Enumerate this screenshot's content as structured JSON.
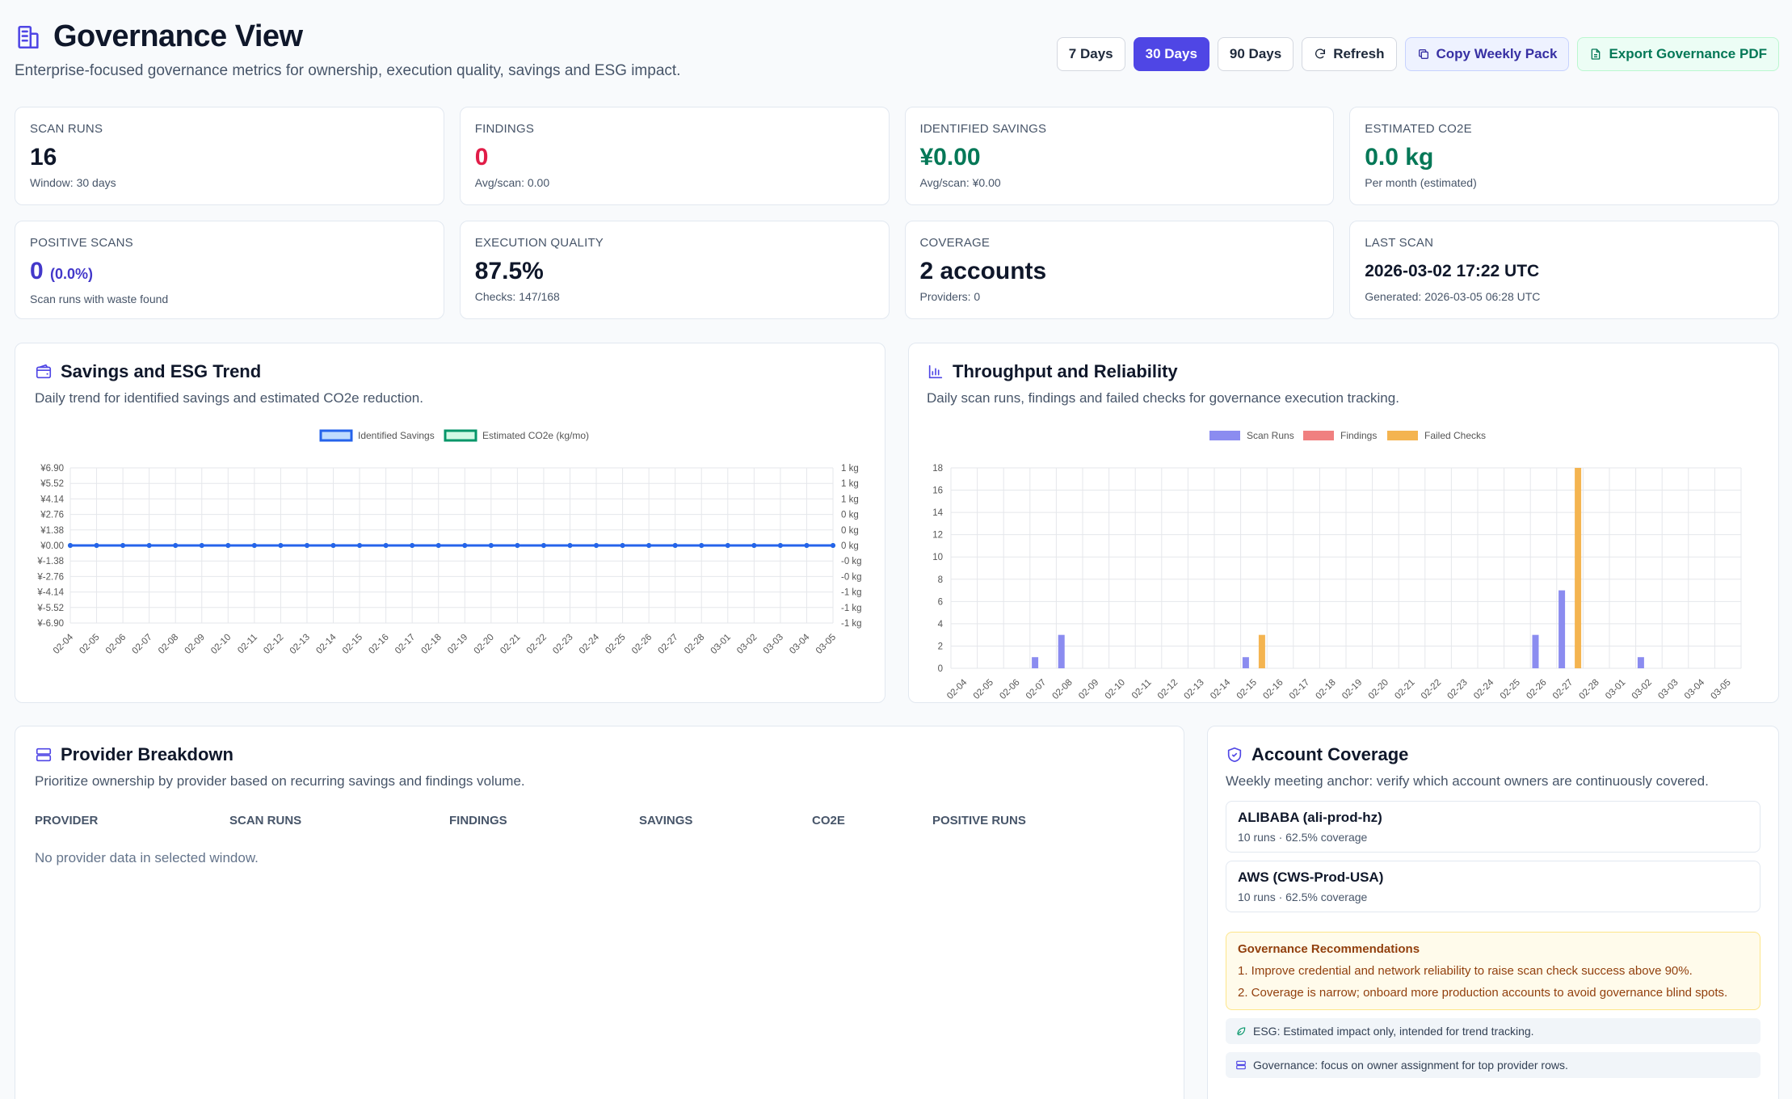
{
  "header": {
    "title": "Governance View",
    "subtitle": "Enterprise-focused governance metrics for ownership, execution quality, savings and ESG impact.",
    "buttons": {
      "days7": "7 Days",
      "days30": "30 Days",
      "days90": "90 Days",
      "refresh": "Refresh",
      "copy": "Copy Weekly Pack",
      "export": "Export Governance PDF"
    }
  },
  "cards": {
    "scan_runs": {
      "label": "SCAN RUNS",
      "value": "16",
      "sub": "Window: 30 days"
    },
    "findings": {
      "label": "FINDINGS",
      "value": "0",
      "sub": "Avg/scan: 0.00"
    },
    "savings": {
      "label": "IDENTIFIED SAVINGS",
      "value": "¥0.00",
      "sub": "Avg/scan: ¥0.00"
    },
    "co2e": {
      "label": "ESTIMATED CO2E",
      "value": "0.0 kg",
      "sub": "Per month (estimated)"
    },
    "positive": {
      "label": "POSITIVE SCANS",
      "value": "0",
      "pct": "(0.0%)",
      "sub": "Scan runs with waste found"
    },
    "quality": {
      "label": "EXECUTION QUALITY",
      "value": "87.5%",
      "sub": "Checks: 147/168"
    },
    "coverage": {
      "label": "COVERAGE",
      "value": "2 accounts",
      "sub": "Providers: 0"
    },
    "last_scan": {
      "label": "LAST SCAN",
      "value": "2026-03-02 17:22 UTC",
      "sub": "Generated: 2026-03-05 06:28 UTC"
    }
  },
  "savings_panel": {
    "title": "Savings and ESG Trend",
    "subtitle": "Daily trend for identified savings and estimated CO2e reduction."
  },
  "throughput_panel": {
    "title": "Throughput and Reliability",
    "subtitle": "Daily scan runs, findings and failed checks for governance execution tracking."
  },
  "chart_data": [
    {
      "type": "line",
      "x": [
        "02-04",
        "02-05",
        "02-06",
        "02-07",
        "02-08",
        "02-09",
        "02-10",
        "02-11",
        "02-12",
        "02-13",
        "02-14",
        "02-15",
        "02-16",
        "02-17",
        "02-18",
        "02-19",
        "02-20",
        "02-21",
        "02-22",
        "02-23",
        "02-24",
        "02-25",
        "02-26",
        "02-27",
        "02-28",
        "03-01",
        "03-02",
        "03-03",
        "03-04",
        "03-05"
      ],
      "series": [
        {
          "name": "Identified Savings",
          "values": [
            0,
            0,
            0,
            0,
            0,
            0,
            0,
            0,
            0,
            0,
            0,
            0,
            0,
            0,
            0,
            0,
            0,
            0,
            0,
            0,
            0,
            0,
            0,
            0,
            0,
            0,
            0,
            0,
            0,
            0
          ],
          "color": "#2563eb"
        },
        {
          "name": "Estimated CO2e (kg/mo)",
          "values": [
            0,
            0,
            0,
            0,
            0,
            0,
            0,
            0,
            0,
            0,
            0,
            0,
            0,
            0,
            0,
            0,
            0,
            0,
            0,
            0,
            0,
            0,
            0,
            0,
            0,
            0,
            0,
            0,
            0,
            0
          ],
          "color": "#059669"
        }
      ],
      "y_left_ticks": [
        "¥6.90",
        "¥5.52",
        "¥4.14",
        "¥2.76",
        "¥1.38",
        "¥0.00",
        "¥-1.38",
        "¥-2.76",
        "¥-4.14",
        "¥-5.52",
        "¥-6.90"
      ],
      "y_right_ticks": [
        "1 kg",
        "1 kg",
        "1 kg",
        "0 kg",
        "0 kg",
        "0 kg",
        "-0 kg",
        "-0 kg",
        "-1 kg",
        "-1 kg",
        "-1 kg"
      ],
      "ylim": [
        -6.9,
        6.9
      ],
      "legend": "top-center",
      "grid": true
    },
    {
      "type": "bar",
      "x": [
        "02-04",
        "02-05",
        "02-06",
        "02-07",
        "02-08",
        "02-09",
        "02-10",
        "02-11",
        "02-12",
        "02-13",
        "02-14",
        "02-15",
        "02-16",
        "02-17",
        "02-18",
        "02-19",
        "02-20",
        "02-21",
        "02-22",
        "02-23",
        "02-24",
        "02-25",
        "02-26",
        "02-27",
        "02-28",
        "03-01",
        "03-02",
        "03-03",
        "03-04",
        "03-05"
      ],
      "series": [
        {
          "name": "Scan Runs",
          "values": [
            0,
            0,
            0,
            1,
            3,
            0,
            0,
            0,
            0,
            0,
            0,
            1,
            0,
            0,
            0,
            0,
            0,
            0,
            0,
            0,
            0,
            0,
            3,
            7,
            0,
            0,
            1,
            0,
            0,
            0
          ],
          "color": "#8b8cf0"
        },
        {
          "name": "Findings",
          "values": [
            0,
            0,
            0,
            0,
            0,
            0,
            0,
            0,
            0,
            0,
            0,
            0,
            0,
            0,
            0,
            0,
            0,
            0,
            0,
            0,
            0,
            0,
            0,
            0,
            0,
            0,
            0,
            0,
            0,
            0
          ],
          "color": "#f08080"
        },
        {
          "name": "Failed Checks",
          "values": [
            0,
            0,
            0,
            0,
            0,
            0,
            0,
            0,
            0,
            0,
            0,
            3,
            0,
            0,
            0,
            0,
            0,
            0,
            0,
            0,
            0,
            0,
            0,
            18,
            0,
            0,
            0,
            0,
            0,
            0
          ],
          "color": "#f4b450"
        }
      ],
      "y_ticks": [
        "18",
        "16",
        "14",
        "12",
        "10",
        "8",
        "6",
        "4",
        "2",
        "0"
      ],
      "ylim": [
        0,
        18
      ],
      "legend": "top-center",
      "grid": true
    }
  ],
  "provider_panel": {
    "title": "Provider Breakdown",
    "subtitle": "Prioritize ownership by provider based on recurring savings and findings volume.",
    "columns": [
      "PROVIDER",
      "SCAN RUNS",
      "FINDINGS",
      "SAVINGS",
      "CO2E",
      "POSITIVE RUNS"
    ],
    "empty": "No provider data in selected window."
  },
  "coverage_panel": {
    "title": "Account Coverage",
    "subtitle": "Weekly meeting anchor: verify which account owners are continuously covered.",
    "accounts": [
      {
        "name": "ALIBABA (ali-prod-hz)",
        "meta": "10 runs · 62.5% coverage"
      },
      {
        "name": "AWS (CWS-Prod-USA)",
        "meta": "10 runs · 62.5% coverage"
      }
    ],
    "recommendations": {
      "title": "Governance Recommendations",
      "items": [
        "1. Improve credential and network reliability to raise scan check success above 90%.",
        "2. Coverage is narrow; onboard more production accounts to avoid governance blind spots."
      ]
    },
    "notes": [
      "ESG: Estimated impact only, intended for trend tracking.",
      "Governance: focus on owner assignment for top provider rows."
    ]
  }
}
